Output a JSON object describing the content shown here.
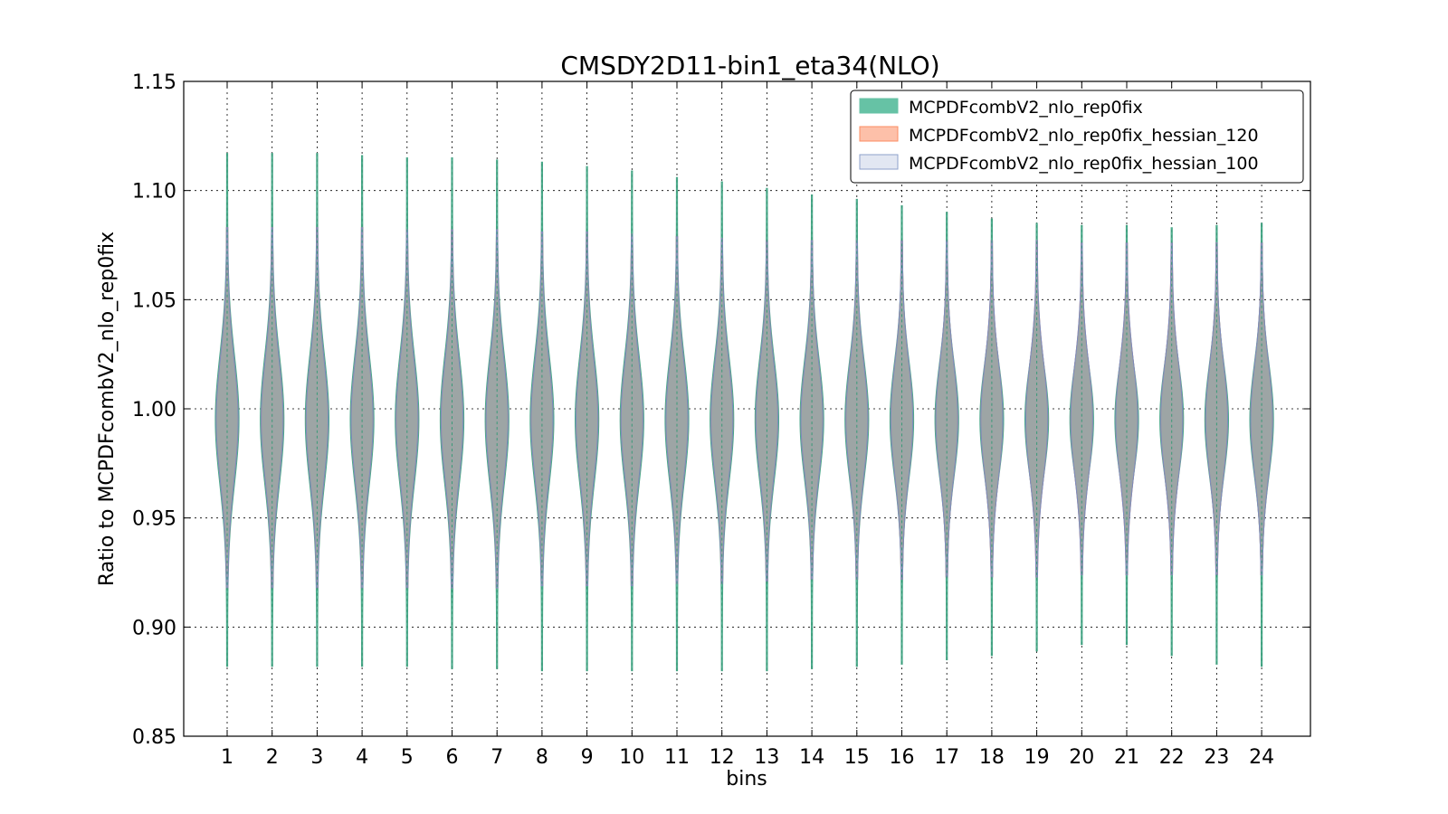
{
  "chart_data": {
    "type": "violin",
    "title": "CMSDY2D11-bin1_eta34(NLO)",
    "xlabel": "bins",
    "ylabel": "Ratio to MCPDFcombV2_nlo_rep0fix",
    "ylim": [
      0.85,
      1.15
    ],
    "yticks": [
      "0.85",
      "0.90",
      "0.95",
      "1.00",
      "1.05",
      "1.10",
      "1.15"
    ],
    "categories": [
      "1",
      "2",
      "3",
      "4",
      "5",
      "6",
      "7",
      "8",
      "9",
      "10",
      "11",
      "12",
      "13",
      "14",
      "15",
      "16",
      "17",
      "18",
      "19",
      "20",
      "21",
      "22",
      "23",
      "24"
    ],
    "grid": true,
    "legend_position": "top-right",
    "series": [
      {
        "name": "MCPDFcombV2_nlo_rep0fix",
        "color": "#66c2a5",
        "min": [
          0.882,
          0.882,
          0.882,
          0.882,
          0.882,
          0.881,
          0.881,
          0.88,
          0.88,
          0.88,
          0.88,
          0.88,
          0.88,
          0.881,
          0.882,
          0.883,
          0.885,
          0.887,
          0.889,
          0.892,
          0.892,
          0.887,
          0.883,
          0.882
        ],
        "max": [
          1.117,
          1.117,
          1.117,
          1.116,
          1.115,
          1.115,
          1.114,
          1.113,
          1.111,
          1.109,
          1.106,
          1.104,
          1.101,
          1.098,
          1.096,
          1.093,
          1.09,
          1.087,
          1.085,
          1.084,
          1.084,
          1.083,
          1.084,
          1.085
        ],
        "median": [
          0.995,
          0.995,
          0.995,
          0.995,
          0.995,
          0.995,
          0.995,
          0.995,
          0.995,
          0.995,
          0.995,
          0.995,
          0.995,
          0.995,
          0.995,
          0.995,
          0.995,
          0.995,
          0.995,
          0.995,
          0.995,
          0.995,
          0.995,
          0.995
        ]
      },
      {
        "name": "MCPDFcombV2_nlo_rep0fix_hessian_120",
        "color": "#fc8d62",
        "min": [
          0.918,
          0.918,
          0.918,
          0.918,
          0.918,
          0.918,
          0.918,
          0.919,
          0.919,
          0.919,
          0.92,
          0.92,
          0.921,
          0.922,
          0.922,
          0.922,
          0.923,
          0.923,
          0.923,
          0.924,
          0.924,
          0.924,
          0.924,
          0.924
        ],
        "max": [
          1.083,
          1.083,
          1.083,
          1.083,
          1.082,
          1.082,
          1.082,
          1.081,
          1.081,
          1.08,
          1.079,
          1.078,
          1.077,
          1.077,
          1.077,
          1.077,
          1.077,
          1.077,
          1.077,
          1.076,
          1.076,
          1.076,
          1.076,
          1.076
        ],
        "median": [
          0.995,
          0.995,
          0.995,
          0.995,
          0.995,
          0.995,
          0.995,
          0.995,
          0.995,
          0.995,
          0.995,
          0.995,
          0.995,
          0.995,
          0.995,
          0.995,
          0.995,
          0.995,
          0.995,
          0.995,
          0.995,
          0.995,
          0.995,
          0.995
        ]
      },
      {
        "name": "MCPDFcombV2_nlo_rep0fix_hessian_100",
        "color": "#8da0cb",
        "min": [
          0.918,
          0.918,
          0.918,
          0.918,
          0.918,
          0.918,
          0.918,
          0.919,
          0.919,
          0.919,
          0.92,
          0.92,
          0.921,
          0.922,
          0.922,
          0.922,
          0.923,
          0.923,
          0.923,
          0.924,
          0.924,
          0.924,
          0.924,
          0.924
        ],
        "max": [
          1.083,
          1.083,
          1.083,
          1.083,
          1.082,
          1.082,
          1.082,
          1.081,
          1.081,
          1.08,
          1.079,
          1.078,
          1.077,
          1.077,
          1.077,
          1.077,
          1.077,
          1.077,
          1.077,
          1.076,
          1.076,
          1.076,
          1.076,
          1.076
        ],
        "median": [
          0.995,
          0.995,
          0.995,
          0.995,
          0.995,
          0.995,
          0.995,
          0.995,
          0.995,
          0.995,
          0.995,
          0.995,
          0.995,
          0.995,
          0.995,
          0.995,
          0.995,
          0.995,
          0.995,
          0.995,
          0.995,
          0.995,
          0.995,
          0.995
        ]
      }
    ]
  }
}
